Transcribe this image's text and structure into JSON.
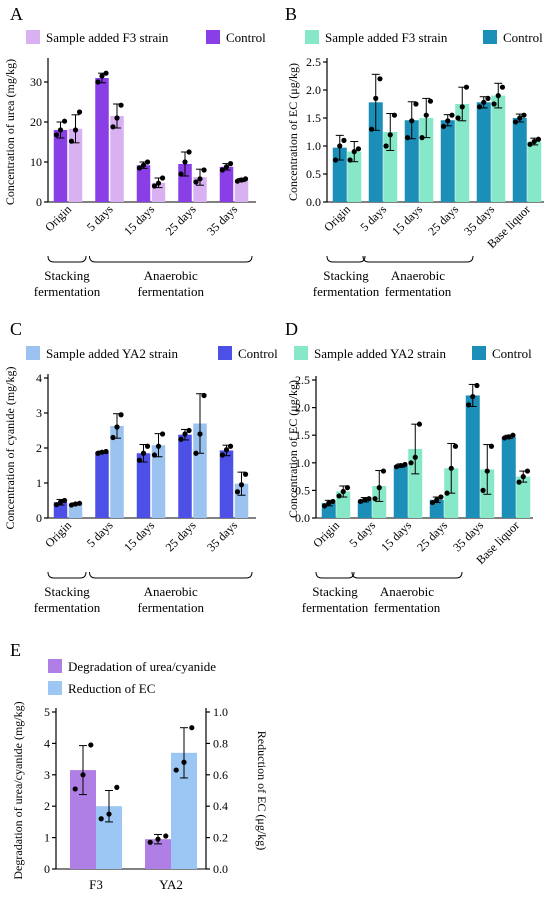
{
  "colors": {
    "purple_dark": "#8a3ee6",
    "purple_light": "#d9b0f2",
    "green": "#86e8c8",
    "teal": "#1b8fb8",
    "blue_light": "#9cc3f0",
    "blue_dark": "#4d50e6",
    "purple_mid": "#b07fe6",
    "sky": "#9cc6f4"
  },
  "chart_data": [
    {
      "id": "A",
      "panel_label": "A",
      "type": "bar",
      "ylabel": "Concentration of urea (mg/kg)",
      "ylim": [
        0,
        35
      ],
      "yticks": [
        0,
        10,
        20,
        30
      ],
      "categories": [
        "Origin",
        "5 days",
        "15 days",
        "25 days",
        "35 days"
      ],
      "series": [
        {
          "name": "Control",
          "color": "#8a3ee6",
          "values": [
            18.0,
            31.0,
            9.2,
            9.5,
            8.8
          ],
          "err": [
            2.0,
            1.2,
            0.8,
            3.0,
            0.8
          ],
          "points": [
            [
              16.8,
              18.0,
              20.2
            ],
            [
              30.0,
              31.5,
              32.2
            ],
            [
              8.5,
              9.2,
              10.0
            ],
            [
              7.0,
              10.0,
              12.5
            ],
            [
              8.0,
              8.8,
              9.6
            ]
          ]
        },
        {
          "name": "Sample added F3 strain",
          "color": "#d9b0f2",
          "values": [
            18.3,
            21.5,
            4.8,
            6.2,
            5.5
          ],
          "err": [
            3.5,
            3.0,
            1.2,
            2.0,
            0.4
          ],
          "points": [
            [
              15.2,
              18.0,
              22.5
            ],
            [
              18.8,
              21.0,
              24.2
            ],
            [
              4.0,
              4.7,
              6.0
            ],
            [
              5.0,
              5.8,
              8.0
            ],
            [
              5.2,
              5.5,
              5.8
            ]
          ]
        }
      ],
      "legend": [
        "Sample added F3 strain",
        "Control"
      ],
      "groups": [
        {
          "label": [
            "Stacking",
            "fermentation"
          ],
          "from": 0,
          "to": 0
        },
        {
          "label": [
            "Anaerobic",
            "fermentation"
          ],
          "from": 1,
          "to": 4
        }
      ]
    },
    {
      "id": "B",
      "panel_label": "B",
      "type": "bar",
      "ylabel": "Concentration of EC (μg/kg)",
      "ylim": [
        0,
        2.5
      ],
      "yticks": [
        0.0,
        0.5,
        1.0,
        1.5,
        2.0,
        2.5
      ],
      "categories": [
        "Origin",
        "5 days",
        "15 days",
        "25 days",
        "35 days",
        "Base liquor"
      ],
      "series": [
        {
          "name": "Control",
          "color": "#1b8fb8",
          "values": [
            0.97,
            1.78,
            1.46,
            1.46,
            1.78,
            1.5
          ],
          "err": [
            0.22,
            0.5,
            0.33,
            0.1,
            0.1,
            0.07
          ],
          "points": [
            [
              0.75,
              1.0,
              1.1
            ],
            [
              1.3,
              1.85,
              2.2
            ],
            [
              1.15,
              1.45,
              1.75
            ],
            [
              1.35,
              1.45,
              1.55
            ],
            [
              1.7,
              1.78,
              1.85
            ],
            [
              1.43,
              1.5,
              1.55
            ]
          ]
        },
        {
          "name": "Sample added F3 strain",
          "color": "#86e8c8",
          "values": [
            0.9,
            1.25,
            1.5,
            1.75,
            1.9,
            1.08
          ],
          "err": [
            0.18,
            0.33,
            0.35,
            0.3,
            0.22,
            0.06
          ],
          "points": [
            [
              0.75,
              0.9,
              0.95
            ],
            [
              1.0,
              1.2,
              1.55
            ],
            [
              1.15,
              1.55,
              1.8
            ],
            [
              1.5,
              1.7,
              2.05
            ],
            [
              1.75,
              1.9,
              2.05
            ],
            [
              1.03,
              1.08,
              1.12
            ]
          ]
        }
      ],
      "legend": [
        "Sample added F3 strain",
        "Control"
      ],
      "groups": [
        {
          "label": [
            "Stacking",
            "fermentation"
          ],
          "from": 0,
          "to": 0
        },
        {
          "label": [
            "Anaerobic",
            "fermentation"
          ],
          "from": 1,
          "to": 3
        }
      ]
    },
    {
      "id": "C",
      "panel_label": "C",
      "type": "bar",
      "ylabel": "Concentration of cyanide (mg/kg)",
      "ylim": [
        0,
        4
      ],
      "yticks": [
        0,
        1,
        2,
        3,
        4
      ],
      "categories": [
        "Origin",
        "5 days",
        "15 days",
        "25 days",
        "35 days"
      ],
      "series": [
        {
          "name": "Control",
          "color": "#4d50e6",
          "values": [
            0.45,
            1.88,
            1.85,
            2.38,
            1.93
          ],
          "err": [
            0.08,
            0.03,
            0.25,
            0.15,
            0.15
          ],
          "points": [
            [
              0.38,
              0.45,
              0.5
            ],
            [
              1.85,
              1.88,
              1.9
            ],
            [
              1.65,
              1.85,
              2.05
            ],
            [
              2.25,
              2.4,
              2.5
            ],
            [
              1.8,
              1.95,
              2.05
            ]
          ]
        },
        {
          "name": "Sample added YA2 strain",
          "color": "#9cc3f0",
          "values": [
            0.4,
            2.63,
            2.08,
            2.7,
            0.98
          ],
          "err": [
            0.03,
            0.35,
            0.33,
            0.85,
            0.33
          ],
          "points": [
            [
              0.37,
              0.4,
              0.42
            ],
            [
              2.3,
              2.6,
              2.95
            ],
            [
              1.8,
              2.05,
              2.4
            ],
            [
              1.85,
              2.4,
              3.5
            ],
            [
              0.75,
              0.95,
              1.25
            ]
          ]
        }
      ],
      "legend": [
        "Sample added YA2 strain",
        "Control"
      ],
      "groups": [
        {
          "label": [
            "Stacking",
            "fermentation"
          ],
          "from": 0,
          "to": 0
        },
        {
          "label": [
            "Anaerobic",
            "fermentation"
          ],
          "from": 1,
          "to": 4
        }
      ]
    },
    {
      "id": "D",
      "panel_label": "D",
      "type": "bar",
      "ylabel": "Concentration of EC (μg/kg)",
      "ylim": [
        0,
        2.5
      ],
      "yticks": [
        0.0,
        0.5,
        1.0,
        1.5,
        2.0,
        2.5
      ],
      "categories": [
        "Origin",
        "5 days",
        "15 days",
        "25 days",
        "35 days",
        "Base liquor"
      ],
      "series": [
        {
          "name": "Control",
          "color": "#1b8fb8",
          "values": [
            0.27,
            0.33,
            0.95,
            0.33,
            2.22,
            1.47
          ],
          "err": [
            0.05,
            0.04,
            0.03,
            0.05,
            0.2,
            0.03
          ],
          "points": [
            [
              0.22,
              0.27,
              0.3
            ],
            [
              0.3,
              0.33,
              0.35
            ],
            [
              0.93,
              0.95,
              0.97
            ],
            [
              0.28,
              0.33,
              0.38
            ],
            [
              2.05,
              2.2,
              2.4
            ],
            [
              1.45,
              1.47,
              1.5
            ]
          ]
        },
        {
          "name": "Sample added YA2 strain",
          "color": "#86e8c8",
          "values": [
            0.48,
            0.58,
            1.25,
            0.9,
            0.88,
            0.75
          ],
          "err": [
            0.1,
            0.28,
            0.45,
            0.45,
            0.45,
            0.1
          ],
          "points": [
            [
              0.4,
              0.48,
              0.55
            ],
            [
              0.35,
              0.55,
              0.85
            ],
            [
              1.0,
              1.1,
              1.7
            ],
            [
              0.45,
              0.9,
              1.3
            ],
            [
              0.5,
              0.85,
              1.3
            ],
            [
              0.65,
              0.75,
              0.85
            ]
          ]
        }
      ],
      "legend": [
        "Sample added YA2 strain",
        "Control"
      ],
      "groups": [
        {
          "label": [
            "Stacking",
            "fermentation"
          ],
          "from": 0,
          "to": 0
        },
        {
          "label": [
            "Anaerobic",
            "fermentation"
          ],
          "from": 1,
          "to": 3
        }
      ]
    },
    {
      "id": "E",
      "panel_label": "E",
      "type": "bar",
      "ylabel": "Degradation of urea/cyanide (mg/kg)",
      "y2label": "Reduction of EC (μg/kg)",
      "ylim": [
        0,
        5
      ],
      "yticks": [
        0,
        1,
        2,
        3,
        4,
        5
      ],
      "y2lim": [
        0,
        1.0
      ],
      "y2ticks": [
        0.0,
        0.2,
        0.4,
        0.6,
        0.8,
        1.0
      ],
      "categories": [
        "F3",
        "YA2"
      ],
      "series": [
        {
          "name": "Degradation of urea/cyanide",
          "color": "#b07fe6",
          "axis": "left",
          "values": [
            3.15,
            0.95
          ],
          "err": [
            0.78,
            0.15
          ],
          "points": [
            [
              2.55,
              3.0,
              3.95
            ],
            [
              0.85,
              0.95,
              1.05
            ]
          ]
        },
        {
          "name": "Reduction of EC",
          "color": "#9cc6f4",
          "axis": "right",
          "values": [
            0.4,
            0.74
          ],
          "err": [
            0.1,
            0.16
          ],
          "points": [
            [
              0.32,
              0.35,
              0.52
            ],
            [
              0.63,
              0.68,
              0.9
            ]
          ]
        }
      ],
      "legend": [
        "Degradation of urea/cyanide",
        "Reduction of EC"
      ]
    }
  ]
}
